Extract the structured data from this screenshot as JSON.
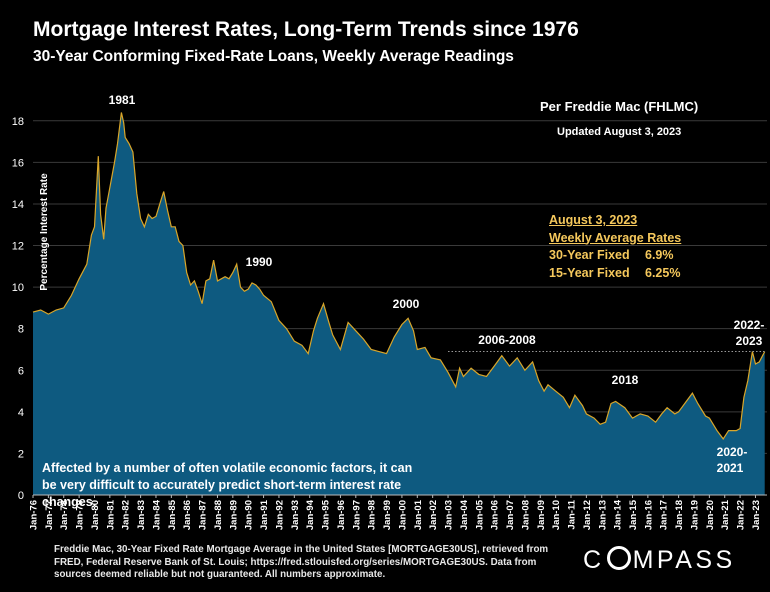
{
  "title": "Mortgage Interest Rates, Long-Term Trends since 1976",
  "subtitle": "30-Year Conforming Fixed-Rate Loans, Weekly Average Readings",
  "source_attribution": "Per Freddie Mac (FHLMC)",
  "updated": "Updated August 3, 2023",
  "legend_box": {
    "date": "August 3, 2023",
    "heading": "Weekly Average Rates",
    "rows": [
      {
        "label": "30-Year Fixed",
        "value": "6.9%"
      },
      {
        "label": "15-Year Fixed",
        "value": "6.25%"
      }
    ]
  },
  "note": "Affected by a number of often volatile economic factors, it can be very difficult to accurately predict short-term interest rate changes.",
  "source_note": "Freddie Mac, 30-Year Fixed Rate Mortgage Average in the United States [MORTGAGE30US], retrieved from FRED, Federal Reserve Bank of St. Louis; https://fred.stlouisfed.org/series/MORTGAGE30US. Data from sources deemed reliable but not guaranteed. All numbers approximate.",
  "logo": {
    "before": "C",
    "after": "MPASS"
  },
  "colors": {
    "area_fill": "#0e5a80",
    "line": "#d9a62a",
    "box_text": "#f5c85c",
    "reference_line": "#9a9a9a"
  },
  "chart_data": {
    "type": "area",
    "ylabel": "Percentage Interest  Rate",
    "ylim": [
      0,
      19
    ],
    "yticks": [
      0,
      2,
      4,
      6,
      8,
      10,
      12,
      14,
      16,
      18
    ],
    "xlim": [
      1976.0,
      2023.75
    ],
    "x_tick_labels": [
      "Jan-76",
      "Jan-77",
      "Jan-78",
      "Jan-79",
      "Jan-80",
      "Jan-81",
      "Jan-82",
      "Jan-83",
      "Jan-84",
      "Jan-85",
      "Jan-86",
      "Jan-87",
      "Jan-88",
      "Jan-89",
      "Jan-90",
      "Jan-91",
      "Jan-92",
      "Jan-93",
      "Jan-94",
      "Jan-95",
      "Jan-96",
      "Jan-97",
      "Jan-98",
      "Jan-99",
      "Jan-00",
      "Jan-01",
      "Jan-02",
      "Jan-03",
      "Jan-04",
      "Jan-05",
      "Jan-06",
      "Jan-07",
      "Jan-08",
      "Jan-09",
      "Jan-10",
      "Jan-11",
      "Jan-12",
      "Jan-13",
      "Jan-14",
      "Jan-15",
      "Jan-16",
      "Jan-17",
      "Jan-18",
      "Jan-19",
      "Jan-20",
      "Jan-21",
      "Jan-22",
      "Jan-23"
    ],
    "reference_line": {
      "value": 6.9,
      "from": 2003.0,
      "to": 2023.6
    },
    "x": [
      1976.0,
      1976.5,
      1977.0,
      1977.5,
      1978.0,
      1978.5,
      1979.0,
      1979.5,
      1979.8,
      1980.0,
      1980.25,
      1980.4,
      1980.6,
      1980.75,
      1981.0,
      1981.3,
      1981.5,
      1981.75,
      1981.9,
      1982.0,
      1982.25,
      1982.5,
      1982.75,
      1983.0,
      1983.25,
      1983.5,
      1983.75,
      1984.0,
      1984.25,
      1984.5,
      1984.75,
      1985.0,
      1985.25,
      1985.5,
      1985.75,
      1986.0,
      1986.25,
      1986.5,
      1986.75,
      1987.0,
      1987.25,
      1987.5,
      1987.75,
      1988.0,
      1988.25,
      1988.5,
      1988.75,
      1989.0,
      1989.25,
      1989.5,
      1989.75,
      1990.0,
      1990.25,
      1990.5,
      1990.75,
      1991.0,
      1991.5,
      1992.0,
      1992.5,
      1993.0,
      1993.5,
      1993.9,
      1994.25,
      1994.5,
      1994.9,
      1995.25,
      1995.5,
      1996.0,
      1996.5,
      1997.0,
      1997.5,
      1998.0,
      1998.5,
      1999.0,
      1999.5,
      2000.0,
      2000.4,
      2000.75,
      2001.0,
      2001.5,
      2001.9,
      2002.5,
      2003.0,
      2003.5,
      2003.75,
      2004.0,
      2004.5,
      2005.0,
      2005.5,
      2006.0,
      2006.5,
      2007.0,
      2007.5,
      2008.0,
      2008.5,
      2008.9,
      2009.25,
      2009.5,
      2010.0,
      2010.5,
      2010.9,
      2011.25,
      2011.75,
      2012.0,
      2012.5,
      2012.9,
      2013.25,
      2013.6,
      2013.9,
      2014.5,
      2015.0,
      2015.5,
      2016.0,
      2016.5,
      2016.9,
      2017.25,
      2017.75,
      2018.0,
      2018.5,
      2018.9,
      2019.25,
      2019.75,
      2020.0,
      2020.5,
      2020.9,
      2021.25,
      2021.75,
      2022.0,
      2022.25,
      2022.5,
      2022.8,
      2023.0,
      2023.25,
      2023.6
    ],
    "y": [
      8.8,
      8.9,
      8.7,
      8.9,
      9.0,
      9.6,
      10.4,
      11.1,
      12.5,
      12.9,
      16.3,
      13.5,
      12.3,
      13.8,
      14.8,
      16.0,
      16.9,
      18.4,
      17.9,
      17.2,
      16.9,
      16.5,
      14.5,
      13.3,
      12.9,
      13.5,
      13.3,
      13.4,
      14.0,
      14.6,
      13.7,
      12.9,
      12.9,
      12.2,
      12.0,
      10.7,
      10.1,
      10.3,
      9.8,
      9.2,
      10.3,
      10.4,
      11.3,
      10.3,
      10.4,
      10.5,
      10.4,
      10.7,
      11.1,
      10.0,
      9.8,
      9.9,
      10.2,
      10.1,
      9.9,
      9.6,
      9.3,
      8.4,
      8.0,
      7.4,
      7.2,
      6.8,
      7.9,
      8.5,
      9.2,
      8.3,
      7.7,
      7.0,
      8.3,
      7.9,
      7.5,
      7.0,
      6.9,
      6.8,
      7.6,
      8.2,
      8.5,
      7.9,
      7.0,
      7.1,
      6.6,
      6.5,
      5.9,
      5.2,
      6.1,
      5.7,
      6.1,
      5.8,
      5.7,
      6.2,
      6.7,
      6.2,
      6.6,
      6.0,
      6.4,
      5.5,
      5.0,
      5.3,
      5.0,
      4.7,
      4.2,
      4.8,
      4.3,
      3.9,
      3.7,
      3.4,
      3.5,
      4.4,
      4.5,
      4.2,
      3.7,
      3.9,
      3.8,
      3.5,
      3.9,
      4.2,
      3.9,
      4.0,
      4.5,
      4.9,
      4.4,
      3.8,
      3.7,
      3.1,
      2.7,
      3.1,
      3.1,
      3.2,
      4.7,
      5.5,
      6.9,
      6.3,
      6.4,
      6.9
    ]
  },
  "annotations": [
    {
      "text": "1981"
    },
    {
      "text": "1990"
    },
    {
      "text": "2000"
    },
    {
      "text": "2006-2008"
    },
    {
      "text": "2018"
    },
    {
      "text": "2020-"
    },
    {
      "text": "2021"
    },
    {
      "text": "2022-"
    },
    {
      "text": "2023"
    }
  ]
}
